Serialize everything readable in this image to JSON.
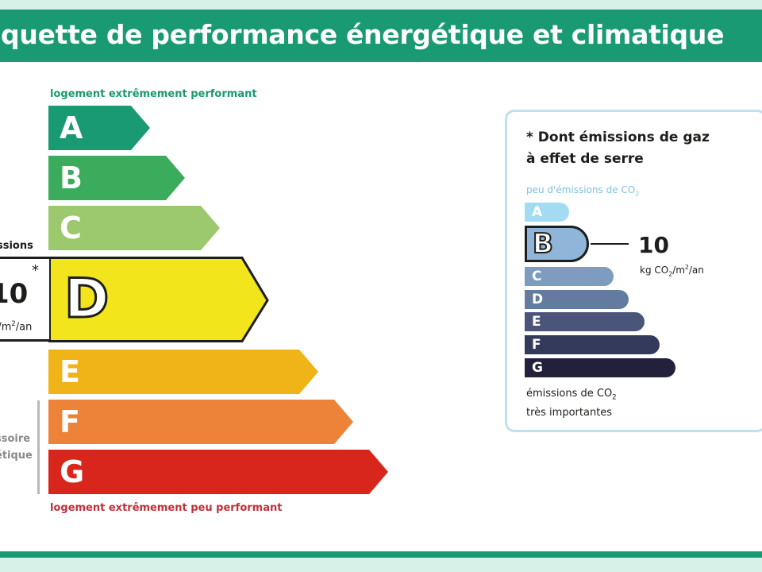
{
  "header": {
    "title": "iquette de performance énergétique et climatique"
  },
  "energy": {
    "top_caption": "logement extrêmement performant",
    "bottom_caption": "logement extrêmement peu performant",
    "classes": [
      {
        "letter": "A",
        "color": "#1a9a73"
      },
      {
        "letter": "B",
        "color": "#3bab5c"
      },
      {
        "letter": "C",
        "color": "#9cc96d"
      },
      {
        "letter": "D",
        "color": "#f2e51c"
      },
      {
        "letter": "E",
        "color": "#f0b419"
      },
      {
        "letter": "F",
        "color": "#ec8339"
      },
      {
        "letter": "G",
        "color": "#d9261c"
      }
    ],
    "selected": "D",
    "emissions_label": "ssions",
    "value": "10",
    "star": "*",
    "unit_prefix": "",
    "unit_suffix": "/m",
    "unit_sup": "2",
    "unit_end": "/an",
    "side_label_line1": "ssoire",
    "side_label_line2": "étique"
  },
  "ges": {
    "title_line1": "* Dont émissions de gaz",
    "title_line2": "à effet de serre",
    "top_caption_prefix": "peu d'émissions de CO",
    "top_caption_sub": "2",
    "bottom_caption_line1_prefix": "émissions de CO",
    "bottom_caption_line1_sub": "2",
    "bottom_caption_line2": "très importantes",
    "classes": [
      {
        "letter": "A",
        "color": "#a3dbf3"
      },
      {
        "letter": "B",
        "color": "#8fb6d8"
      },
      {
        "letter": "C",
        "color": "#7d9cc0"
      },
      {
        "letter": "D",
        "color": "#637b9f"
      },
      {
        "letter": "E",
        "color": "#4b5579"
      },
      {
        "letter": "F",
        "color": "#343a5c"
      },
      {
        "letter": "G",
        "color": "#22203a"
      }
    ],
    "selected": "B",
    "value": "10",
    "unit_prefix": "kg CO",
    "unit_sub": "2",
    "unit_mid": "/m",
    "unit_sup": "2",
    "unit_end": "/an"
  }
}
